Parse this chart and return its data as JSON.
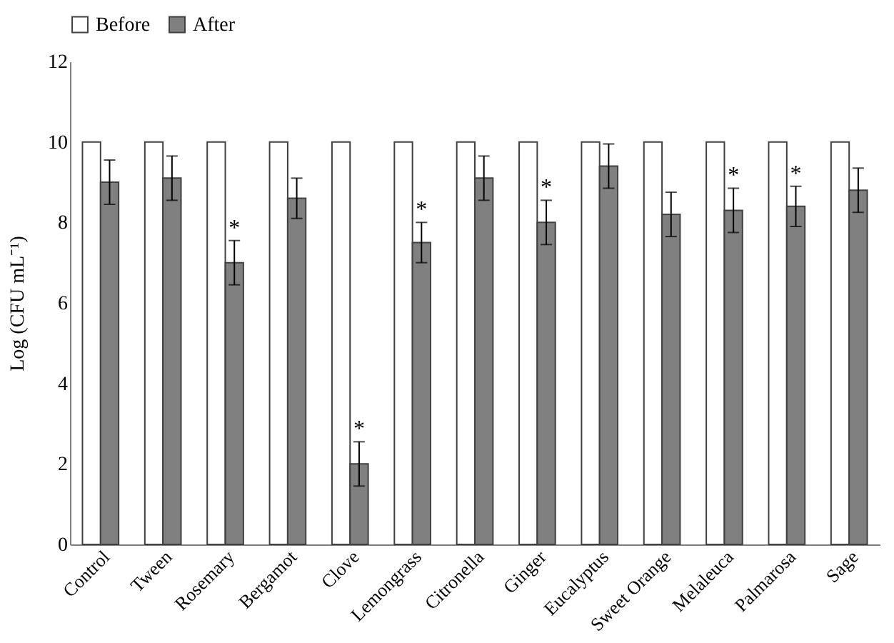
{
  "chart_data": {
    "type": "bar",
    "ylabel": "Log (CFU mL⁻¹)",
    "categories": [
      "Control",
      "Tween",
      "Rosemary",
      "Bergamot",
      "Clove",
      "Lemongrass",
      "Citronella",
      "Ginger",
      "Eucalyptus",
      "Sweet Orange",
      "Melaleuca",
      "Palmarosa",
      "Sage"
    ],
    "series": [
      {
        "name": "Before",
        "color": "#ffffff",
        "values": [
          10,
          10,
          10,
          10,
          10,
          10,
          10,
          10,
          10,
          10,
          10,
          10,
          10
        ]
      },
      {
        "name": "After",
        "color": "#808080",
        "values": [
          9.0,
          9.1,
          7.0,
          8.6,
          2.0,
          7.5,
          9.1,
          8.0,
          9.4,
          8.2,
          8.3,
          8.4,
          8.8
        ],
        "errors": [
          0.55,
          0.55,
          0.55,
          0.5,
          0.55,
          0.5,
          0.55,
          0.55,
          0.55,
          0.55,
          0.55,
          0.5,
          0.55
        ]
      }
    ],
    "annotations": [
      {
        "text": "*",
        "x": "Rosemary",
        "y": 7.55
      },
      {
        "text": "*",
        "x": "Clove",
        "y": 2.55
      },
      {
        "text": "*",
        "x": "Lemongrass",
        "y": 8.0
      },
      {
        "text": "*",
        "x": "Ginger",
        "y": 8.55
      },
      {
        "text": "*",
        "x": "Melaleuca",
        "y": 8.85
      },
      {
        "text": "*",
        "x": "Palmarosa",
        "y": 8.9
      }
    ],
    "ylim": [
      0,
      12
    ],
    "yticks": [
      0,
      2,
      4,
      6,
      8,
      10,
      12
    ],
    "grid": false,
    "legend": "top"
  }
}
